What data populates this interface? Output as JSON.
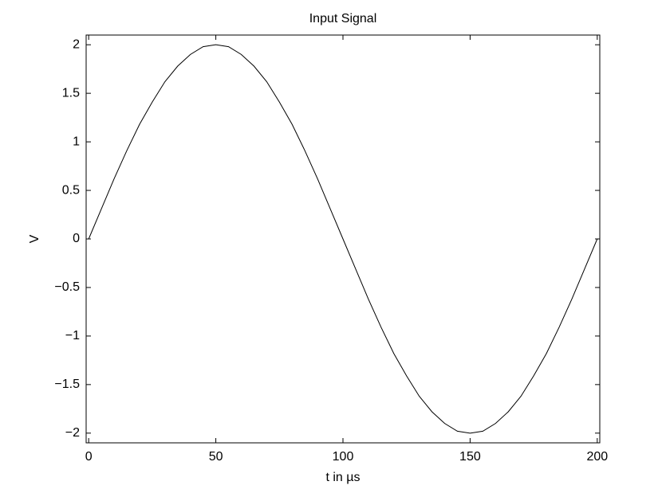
{
  "chart_data": {
    "type": "line",
    "title": "Input Signal",
    "xlabel": "t in µs",
    "ylabel": "V",
    "x": [
      0,
      5,
      10,
      15,
      20,
      25,
      30,
      35,
      40,
      45,
      50,
      55,
      60,
      65,
      70,
      75,
      80,
      85,
      90,
      95,
      100,
      105,
      110,
      115,
      120,
      125,
      130,
      135,
      140,
      145,
      150,
      155,
      160,
      165,
      170,
      175,
      180,
      185,
      190,
      195,
      200
    ],
    "values": [
      0,
      0.31,
      0.62,
      0.91,
      1.18,
      1.41,
      1.62,
      1.78,
      1.9,
      1.98,
      2,
      1.98,
      1.9,
      1.78,
      1.62,
      1.41,
      1.18,
      0.91,
      0.62,
      0.31,
      0,
      -0.31,
      -0.62,
      -0.91,
      -1.18,
      -1.41,
      -1.62,
      -1.78,
      -1.9,
      -1.98,
      -2,
      -1.98,
      -1.9,
      -1.78,
      -1.62,
      -1.41,
      -1.18,
      -0.91,
      -0.62,
      -0.31,
      0
    ],
    "color": "#000000",
    "xlim": [
      -1,
      201
    ],
    "xticks": [
      0,
      50,
      100,
      150,
      200
    ],
    "ylim": [
      -2.1,
      2.1
    ],
    "yticks": [
      {
        "value": -2,
        "label": "−2"
      },
      {
        "value": -1.5,
        "label": "−1.5"
      },
      {
        "value": -1,
        "label": "−1"
      },
      {
        "value": -0.5,
        "label": "−0.5"
      },
      0,
      0.5,
      1,
      1.5,
      2
    ],
    "grid": false
  }
}
